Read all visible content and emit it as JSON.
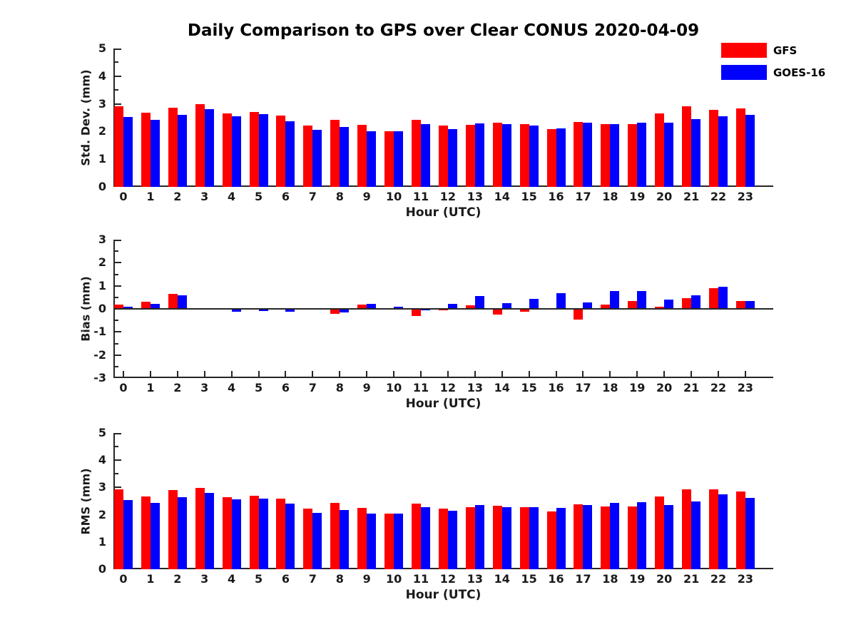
{
  "title": "Daily Comparison to GPS over Clear CONUS 2020-04-09",
  "colors": {
    "gfs": "#ff0000",
    "goes16": "#0000ff",
    "axis": "#262626",
    "tick_text": "#1a1a1a",
    "background": "#ffffff"
  },
  "legend": {
    "items": [
      {
        "label": "GFS",
        "color": "#ff0000"
      },
      {
        "label": "GOES-16",
        "color": "#0000ff"
      }
    ]
  },
  "chart_data": [
    {
      "type": "bar",
      "name": "std-dev",
      "ylabel": "Std. Dev. (mm)",
      "xlabel": "Hour (UTC)",
      "ylim": [
        0,
        5
      ],
      "ytick_step": 1,
      "minor_step": 0.5,
      "grid": false,
      "zero_line": false,
      "categories": [
        0,
        1,
        2,
        3,
        4,
        5,
        6,
        7,
        8,
        9,
        10,
        11,
        12,
        13,
        14,
        15,
        16,
        17,
        18,
        19,
        20,
        21,
        22,
        23
      ],
      "series": [
        {
          "name": "GFS",
          "color": "#ff0000",
          "values": [
            2.9,
            2.67,
            2.85,
            3.0,
            2.65,
            2.7,
            2.58,
            2.22,
            2.42,
            2.23,
            2.02,
            2.41,
            2.21,
            2.25,
            2.32,
            2.26,
            2.1,
            2.34,
            2.28,
            2.27,
            2.66,
            2.9,
            2.78,
            2.83
          ]
        },
        {
          "name": "GOES-16",
          "color": "#0000ff",
          "values": [
            2.52,
            2.43,
            2.6,
            2.8,
            2.55,
            2.62,
            2.38,
            2.07,
            2.17,
            2.02,
            2.02,
            2.26,
            2.1,
            2.3,
            2.26,
            2.22,
            2.12,
            2.33,
            2.28,
            2.33,
            2.33,
            2.45,
            2.56,
            2.61
          ]
        }
      ]
    },
    {
      "type": "bar",
      "name": "bias",
      "ylabel": "Bias (mm)",
      "xlabel": "Hour (UTC)",
      "ylim": [
        -3,
        3
      ],
      "ytick_step": 1,
      "minor_step": 0.5,
      "grid": false,
      "zero_line": true,
      "categories": [
        0,
        1,
        2,
        3,
        4,
        5,
        6,
        7,
        8,
        9,
        10,
        11,
        12,
        13,
        14,
        15,
        16,
        17,
        18,
        19,
        20,
        21,
        22,
        23
      ],
      "series": [
        {
          "name": "GFS",
          "color": "#ff0000",
          "values": [
            0.2,
            0.3,
            0.65,
            0.02,
            0.0,
            -0.03,
            0.0,
            0.02,
            -0.22,
            0.2,
            0.0,
            -0.32,
            -0.07,
            0.15,
            -0.25,
            -0.13,
            0.02,
            -0.46,
            0.2,
            0.33,
            0.08,
            0.47,
            0.9,
            0.34
          ]
        },
        {
          "name": "GOES-16",
          "color": "#0000ff",
          "values": [
            0.08,
            0.22,
            0.58,
            0.02,
            -0.12,
            -0.1,
            -0.12,
            0.0,
            -0.15,
            0.22,
            0.1,
            -0.06,
            0.22,
            0.55,
            0.25,
            0.42,
            0.68,
            0.28,
            0.78,
            0.78,
            0.4,
            0.58,
            0.97,
            0.35
          ]
        }
      ]
    },
    {
      "type": "bar",
      "name": "rms",
      "ylabel": "RMS (mm)",
      "xlabel": "Hour (UTC)",
      "ylim": [
        0,
        5
      ],
      "ytick_step": 1,
      "minor_step": 0.5,
      "grid": false,
      "zero_line": false,
      "categories": [
        0,
        1,
        2,
        3,
        4,
        5,
        6,
        7,
        8,
        9,
        10,
        11,
        12,
        13,
        14,
        15,
        16,
        17,
        18,
        19,
        20,
        21,
        22,
        23
      ],
      "series": [
        {
          "name": "GFS",
          "color": "#ff0000",
          "values": [
            2.92,
            2.67,
            2.9,
            2.99,
            2.64,
            2.69,
            2.59,
            2.22,
            2.44,
            2.24,
            2.03,
            2.42,
            2.22,
            2.27,
            2.33,
            2.27,
            2.13,
            2.38,
            2.3,
            2.3,
            2.66,
            2.94,
            2.94,
            2.85
          ]
        },
        {
          "name": "GOES-16",
          "color": "#0000ff",
          "values": [
            2.54,
            2.44,
            2.64,
            2.8,
            2.57,
            2.6,
            2.42,
            2.08,
            2.17,
            2.03,
            2.03,
            2.28,
            2.14,
            2.36,
            2.27,
            2.27,
            2.25,
            2.35,
            2.43,
            2.46,
            2.36,
            2.5,
            2.74,
            2.63
          ]
        }
      ]
    }
  ]
}
